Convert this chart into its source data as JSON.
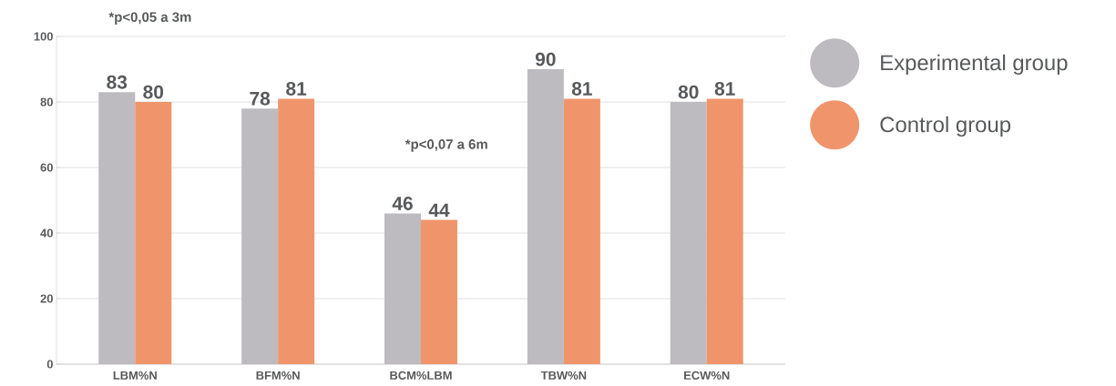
{
  "chart_data": {
    "type": "bar",
    "categories": [
      "LBM%N",
      "BFM%N",
      "BCM%LBM",
      "TBW%N",
      "ECW%N"
    ],
    "series": [
      {
        "name": "Experimental group",
        "color": "#bdbbbf",
        "values": [
          83,
          78,
          46,
          90,
          80
        ]
      },
      {
        "name": "Control group",
        "color": "#f0956b",
        "values": [
          80,
          81,
          44,
          81,
          81
        ]
      }
    ],
    "ylim": [
      0,
      100
    ],
    "yticks": [
      0,
      20,
      40,
      60,
      80,
      100
    ],
    "grid": "y",
    "legend": "right",
    "data_labels": true,
    "annotations": [
      "*p<0,05 a 3m",
      "*p<0,07 a 6m"
    ]
  }
}
